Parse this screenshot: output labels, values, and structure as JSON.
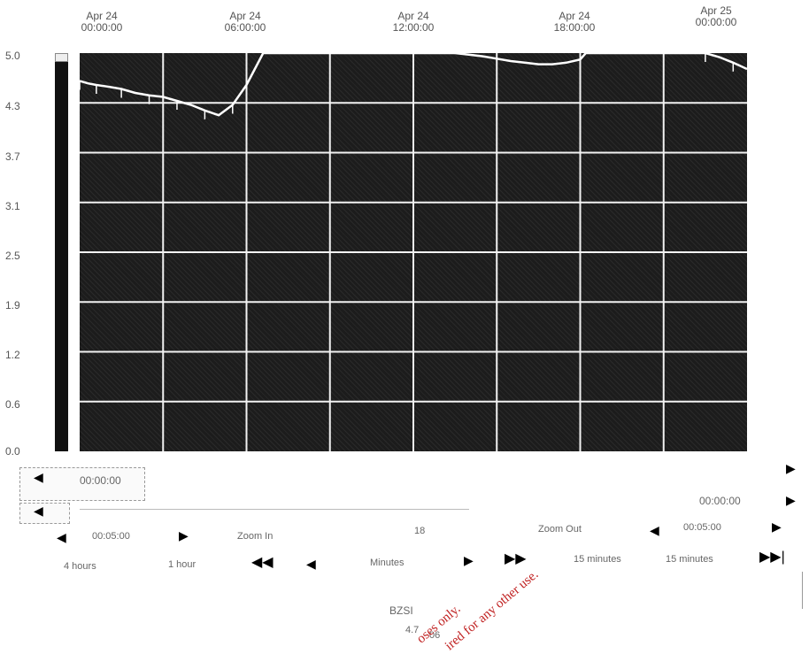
{
  "chart_data": {
    "type": "line",
    "x_labels": [
      "Apr 24\n00:00:00",
      "Apr 24\n06:00:00",
      "Apr 24\n12:00:00",
      "Apr 24\n18:00:00",
      "Apr 25\n00:00:00"
    ],
    "y_ticks": [
      "5.0",
      "4.3",
      "3.7",
      "3.1",
      "2.5",
      "1.9",
      "1.2",
      "0.6",
      "0.0"
    ],
    "ylim": [
      0.0,
      5.0
    ],
    "xlim_hours": [
      0,
      24
    ],
    "grid": true,
    "series": [
      {
        "x": [
          0,
          0.3,
          0.6,
          1,
          1.5,
          2,
          2.5,
          3,
          3.5,
          4,
          4.5,
          5,
          5.5,
          6,
          6.3,
          6.6,
          7,
          7.5,
          8,
          9,
          10,
          10.5,
          11,
          11.5,
          12,
          12.5,
          13,
          13.5,
          14,
          14.5,
          15,
          15.5,
          16,
          16.5,
          17,
          17.5,
          18,
          18.2,
          18.5,
          19,
          19.5,
          20,
          20.5,
          21,
          21.5,
          22,
          22.5,
          23,
          23.5,
          24
        ],
        "y": [
          4.65,
          4.62,
          4.6,
          4.58,
          4.55,
          4.5,
          4.47,
          4.45,
          4.4,
          4.35,
          4.28,
          4.22,
          4.35,
          4.6,
          4.8,
          5.0,
          5.05,
          5.05,
          5.05,
          5.05,
          5.05,
          5.05,
          5.02,
          5.0,
          5.0,
          5.0,
          5.0,
          5.0,
          4.98,
          4.96,
          4.93,
          4.9,
          4.88,
          4.86,
          4.86,
          4.88,
          4.92,
          5.0,
          5.02,
          5.05,
          5.05,
          5.05,
          5.05,
          5.05,
          5.05,
          5.05,
          5.0,
          4.95,
          4.88,
          4.8
        ]
      }
    ]
  },
  "controls": {
    "scroll_start_time": "00:00:00",
    "scroll_end_time": "00:00:00",
    "left_step_value": "00:05:00",
    "right_step_value": "00:05:00",
    "zoom_in": "Zoom In",
    "zoom_out": "Zoom Out",
    "zoom_value": "18",
    "range_left": "4 hours",
    "range_1hour": "1 hour",
    "minutes_label": "Minutes",
    "minutes_right": "15 minutes",
    "minutes_far": "15 minutes",
    "bottom_label": "BZSI",
    "bottom_value": "4.7",
    "bottom_value2": "06"
  },
  "watermark": {
    "line1": "oses only.",
    "line2": "ired for any other use."
  }
}
